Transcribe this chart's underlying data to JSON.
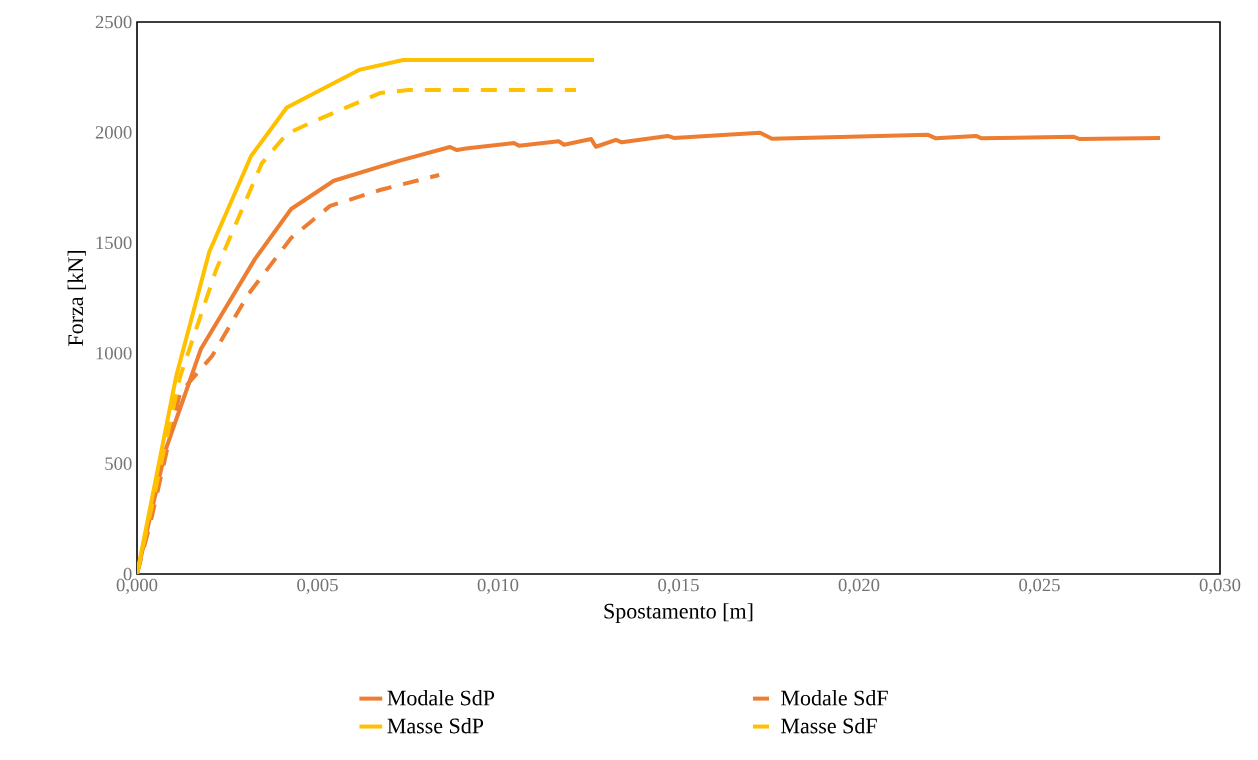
{
  "chart_data": {
    "type": "line",
    "xlabel": "Spostamento [m]",
    "ylabel": "Forza [kN]",
    "xlim": [
      0,
      0.03
    ],
    "ylim": [
      0,
      2500
    ],
    "xticks": [
      {
        "value": 0,
        "label": "0,000"
      },
      {
        "value": 0.005,
        "label": "0,005"
      },
      {
        "value": 0.01,
        "label": "0,010"
      },
      {
        "value": 0.015,
        "label": "0,015"
      },
      {
        "value": 0.02,
        "label": "0,020"
      },
      {
        "value": 0.025,
        "label": "0,025"
      },
      {
        "value": 0.03,
        "label": "0,030"
      }
    ],
    "yticks": [
      0,
      500,
      1000,
      1500,
      2000,
      2500
    ],
    "grid": false,
    "legend": "bottom",
    "marker": "none",
    "series": [
      {
        "name": "Modale SdP",
        "color": "#ed7d31",
        "line_style": "solid",
        "x": [
          0,
          0.0008,
          0.00177,
          0.00327,
          0.00427,
          0.00545,
          0.00723,
          0.00867,
          0.00886,
          0.00911,
          0.01044,
          0.01058,
          0.01168,
          0.01183,
          0.01258,
          0.01271,
          0.01327,
          0.01343,
          0.0147,
          0.01487,
          0.01726,
          0.01759,
          0.02191,
          0.02213,
          0.02324,
          0.0234,
          0.02595,
          0.02612,
          0.02834
        ],
        "values": [
          0,
          566,
          1019,
          1427,
          1653,
          1781,
          1870,
          1934,
          1920,
          1927,
          1952,
          1940,
          1960,
          1944,
          1970,
          1935,
          1966,
          1955,
          1984,
          1975,
          1998,
          1971,
          1989,
          1973,
          1984,
          1973,
          1980,
          1970,
          1975
        ]
      },
      {
        "name": "Modale SdF",
        "color": "#ed7d31",
        "line_style": "dashed",
        "x": [
          0,
          0.00039,
          0.00119,
          0.00208,
          0.00307,
          0.00427,
          0.00535,
          0.00673,
          0.00837
        ],
        "values": [
          0,
          245,
          820,
          987,
          1264,
          1522,
          1667,
          1739,
          1807
        ]
      },
      {
        "name": "Masse SdP",
        "color": "#ffc000",
        "line_style": "solid",
        "x": [
          0,
          0.00108,
          0.002,
          0.00316,
          0.00415,
          0.00615,
          0.00737,
          0.01266
        ],
        "values": [
          0,
          892,
          1458,
          1893,
          2113,
          2283,
          2328,
          2328
        ]
      },
      {
        "name": "Masse SdF",
        "color": "#ffc000",
        "line_style": "dashed",
        "x": [
          0,
          0.00119,
          0.00219,
          0.00346,
          0.00415,
          0.00476,
          0.00673,
          0.00752,
          0.01216
        ],
        "values": [
          0,
          892,
          1377,
          1861,
          1993,
          2040,
          2178,
          2192,
          2192
        ]
      }
    ]
  }
}
